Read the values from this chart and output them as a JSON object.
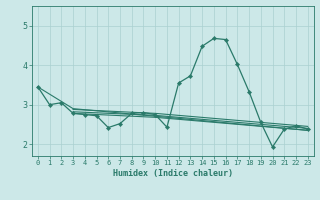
{
  "title": "",
  "xlabel": "Humidex (Indice chaleur)",
  "bg_color": "#cce8e8",
  "line_color": "#2a7a6a",
  "grid_color": "#aad0d0",
  "xlim": [
    -0.5,
    23.5
  ],
  "ylim": [
    1.7,
    5.5
  ],
  "yticks": [
    2,
    3,
    4,
    5
  ],
  "xticks": [
    0,
    1,
    2,
    3,
    4,
    5,
    6,
    7,
    8,
    9,
    10,
    11,
    12,
    13,
    14,
    15,
    16,
    17,
    18,
    19,
    20,
    21,
    22,
    23
  ],
  "lines": [
    {
      "x": [
        0,
        1,
        2,
        3,
        4,
        5,
        6,
        7,
        8,
        9,
        10,
        11,
        12,
        13,
        14,
        15,
        16,
        17,
        18,
        19,
        20,
        21,
        22,
        23
      ],
      "y": [
        3.45,
        3.0,
        3.05,
        2.78,
        2.75,
        2.72,
        2.42,
        2.52,
        2.78,
        2.8,
        2.75,
        2.43,
        3.55,
        3.73,
        4.48,
        4.68,
        4.65,
        4.02,
        3.33,
        2.55,
        1.93,
        2.38,
        2.47,
        2.38
      ],
      "has_markers": true
    },
    {
      "x": [
        0,
        3,
        23
      ],
      "y": [
        3.45,
        2.9,
        2.35
      ],
      "has_markers": false
    },
    {
      "x": [
        3,
        10,
        23
      ],
      "y": [
        2.88,
        2.78,
        2.45
      ],
      "has_markers": false
    },
    {
      "x": [
        3,
        10,
        23
      ],
      "y": [
        2.82,
        2.73,
        2.4
      ],
      "has_markers": false
    },
    {
      "x": [
        3,
        10,
        23
      ],
      "y": [
        2.78,
        2.68,
        2.35
      ],
      "has_markers": false
    }
  ]
}
